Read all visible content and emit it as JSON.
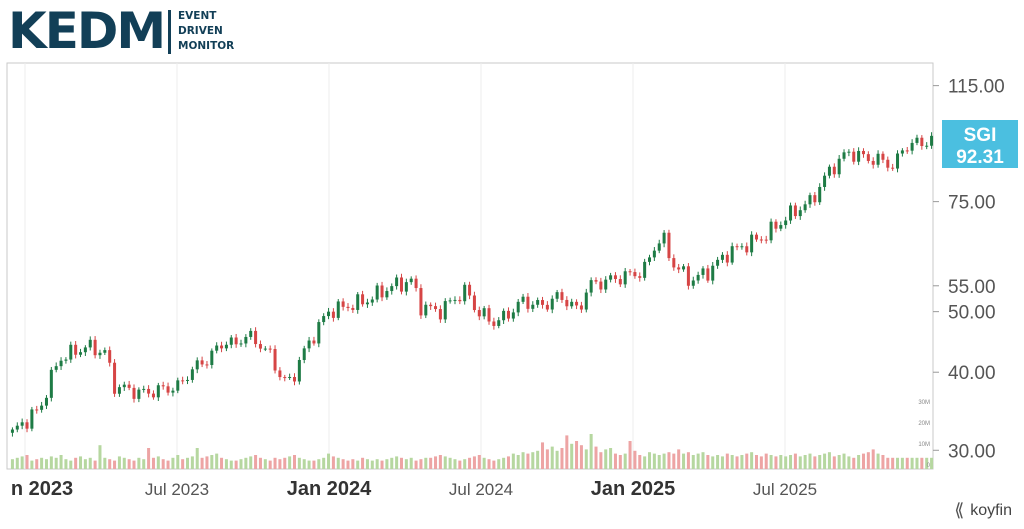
{
  "brand": {
    "logo_mark": "KEDM",
    "logo_sub": "EVENT\nDRIVEN\nMONITOR",
    "provider": "koyfin",
    "provider_icon": "koyfin-chevrons-icon",
    "color_primary": "#123f57"
  },
  "chart_data": {
    "type": "candlestick",
    "ticker": "SGI",
    "last_price": "92.31",
    "y_scale": "log",
    "ylim": [
      28,
      125
    ],
    "y_ticks": [
      "115.00",
      "75.00",
      "55.00",
      "50.00",
      "40.00",
      "30.00"
    ],
    "volume_ticks": [
      "30M",
      "20M",
      "10M",
      "0"
    ],
    "x_tick_labels": [
      {
        "label": "n 2023",
        "bold": true
      },
      {
        "label": "Jul 2023",
        "bold": false
      },
      {
        "label": "Jan 2024",
        "bold": true
      },
      {
        "label": "Jul 2024",
        "bold": false
      },
      {
        "label": "Jan 2025",
        "bold": true
      },
      {
        "label": "Jul 2025",
        "bold": false
      }
    ],
    "grid": true,
    "colors": {
      "up": "#1e7b45",
      "down": "#d64545",
      "vol_up": "#b6d7a0",
      "vol_down": "#eda4a4",
      "label_bg": "#4bbfe0"
    },
    "path_anchors": [
      [
        0,
        32
      ],
      [
        3,
        35
      ],
      [
        5,
        42
      ],
      [
        8,
        44
      ],
      [
        10,
        43
      ],
      [
        11,
        38
      ],
      [
        14,
        37
      ],
      [
        16,
        37.5
      ],
      [
        18,
        38
      ],
      [
        19,
        40
      ],
      [
        21,
        42
      ],
      [
        23,
        45
      ],
      [
        24,
        44
      ],
      [
        25,
        46
      ],
      [
        27,
        44
      ],
      [
        28,
        42
      ],
      [
        29,
        39
      ],
      [
        30,
        38.5
      ],
      [
        31,
        42
      ],
      [
        34,
        50
      ],
      [
        36,
        51
      ],
      [
        38,
        52
      ],
      [
        41,
        55
      ],
      [
        43,
        56
      ],
      [
        44,
        51
      ],
      [
        46,
        50
      ],
      [
        48,
        53
      ],
      [
        49,
        54
      ],
      [
        50,
        50
      ],
      [
        52,
        48
      ],
      [
        53,
        49
      ],
      [
        55,
        52
      ],
      [
        57,
        51
      ],
      [
        59,
        53
      ],
      [
        61,
        50
      ],
      [
        62,
        55
      ],
      [
        64,
        56
      ],
      [
        66,
        57
      ],
      [
        68,
        58
      ],
      [
        69,
        63
      ],
      [
        70,
        66
      ],
      [
        71,
        60
      ],
      [
        73,
        56
      ],
      [
        75,
        58
      ],
      [
        77,
        62
      ],
      [
        79,
        64
      ],
      [
        81,
        66
      ],
      [
        82,
        68
      ],
      [
        84,
        72
      ],
      [
        86,
        75
      ],
      [
        88,
        84
      ],
      [
        90,
        90
      ],
      [
        92,
        88
      ],
      [
        94,
        87
      ],
      [
        95,
        85
      ],
      [
        96,
        92
      ],
      [
        99,
        94
      ]
    ],
    "volume_levels": [
      0.35,
      0.4,
      0.45,
      0.5,
      0.3,
      0.35,
      0.4,
      0.35,
      0.45,
      0.4,
      0.5,
      0.35,
      0.3,
      0.4,
      0.45,
      0.35,
      0.4,
      0.3,
      0.85,
      0.4,
      0.35,
      0.3,
      0.45,
      0.4,
      0.35,
      0.3,
      0.4,
      0.35,
      0.75,
      0.4,
      0.45,
      0.35,
      0.3,
      0.4,
      0.5,
      0.35,
      0.4,
      0.45,
      0.75,
      0.4,
      0.45,
      0.5,
      0.55,
      0.4,
      0.35,
      0.3,
      0.3,
      0.35,
      0.4,
      0.45,
      0.5,
      0.4,
      0.35,
      0.3,
      0.4,
      0.35,
      0.4,
      0.45,
      0.5,
      0.4,
      0.35,
      0.3,
      0.3,
      0.35,
      0.4,
      0.55,
      0.45,
      0.4,
      0.35,
      0.3,
      0.35,
      0.3,
      0.4,
      0.35,
      0.3,
      0.35,
      0.3,
      0.35,
      0.4,
      0.45,
      0.4,
      0.35,
      0.4,
      0.3,
      0.35,
      0.4,
      0.4,
      0.45,
      0.5,
      0.45,
      0.4,
      0.35,
      0.3,
      0.35,
      0.4,
      0.45,
      0.5,
      0.4,
      0.35,
      0.3,
      0.35,
      0.4,
      0.45,
      0.55,
      0.5,
      0.6,
      0.55,
      0.6,
      0.65,
      0.95,
      0.7,
      0.8,
      0.65,
      0.75,
      1.2,
      0.9,
      1.0,
      0.85,
      0.7,
      1.25,
      0.8,
      0.6,
      0.7,
      0.75,
      0.55,
      0.5,
      0.55,
      1.0,
      0.65,
      0.5,
      0.45,
      0.6,
      0.55,
      0.5,
      0.55,
      0.6,
      0.55,
      0.7,
      0.55,
      0.6,
      0.5,
      0.55,
      0.6,
      0.5,
      0.45,
      0.5,
      0.45,
      0.55,
      0.5,
      0.45,
      0.5,
      0.55,
      0.6,
      0.5,
      0.45,
      0.55,
      0.5,
      0.45,
      0.5,
      0.45,
      0.5,
      0.55,
      0.45,
      0.5,
      0.55,
      0.45,
      0.5,
      0.55,
      0.6,
      0.45,
      0.5,
      0.55,
      0.45,
      0.4,
      0.5,
      0.55,
      0.6,
      0.7,
      0.55,
      0.5
    ]
  }
}
